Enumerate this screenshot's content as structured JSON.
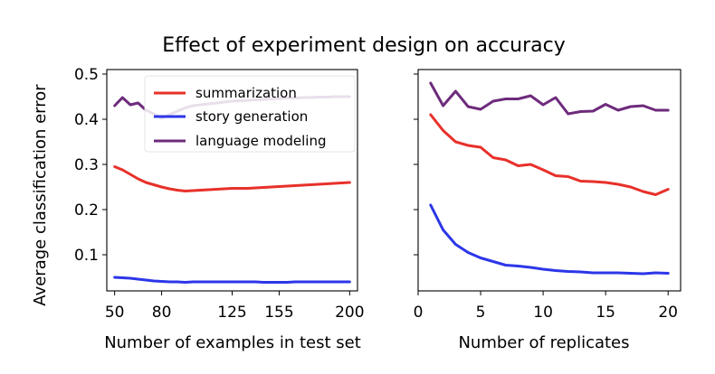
{
  "figure_title": "Effect of experiment design on accuracy",
  "colors": {
    "summarization": "#e8302a",
    "story_generation": "#2c36e8",
    "language_modeling": "#6e2b7c"
  },
  "chart_data": [
    {
      "type": "line",
      "title": "",
      "xlabel": "Number of examples in test set",
      "ylabel": "Average classification error",
      "xlim": [
        45,
        205
      ],
      "ylim": [
        0.02,
        0.51
      ],
      "xticks": [
        50,
        80,
        125,
        155,
        200
      ],
      "yticks": [
        0.1,
        0.2,
        0.3,
        0.4,
        0.5
      ],
      "ytick_labels": [
        "0.1",
        "0.2",
        "0.3",
        "0.4",
        "0.5"
      ],
      "legend": {
        "placement": "top-center",
        "entries": [
          "summarization",
          "story generation",
          "language modeling"
        ]
      },
      "x": [
        50,
        55,
        60,
        65,
        70,
        75,
        80,
        85,
        90,
        95,
        100,
        105,
        110,
        115,
        120,
        125,
        130,
        135,
        140,
        145,
        150,
        155,
        160,
        165,
        170,
        175,
        180,
        185,
        190,
        195,
        200
      ],
      "series": [
        {
          "name": "summarization",
          "color_key": "summarization",
          "values": [
            0.295,
            0.288,
            0.278,
            0.268,
            0.26,
            0.255,
            0.25,
            0.246,
            0.243,
            0.241,
            0.242,
            0.243,
            0.244,
            0.245,
            0.246,
            0.247,
            0.247,
            0.247,
            0.248,
            0.249,
            0.25,
            0.251,
            0.252,
            0.253,
            0.254,
            0.255,
            0.256,
            0.257,
            0.258,
            0.259,
            0.26
          ]
        },
        {
          "name": "story generation",
          "color_key": "story_generation",
          "values": [
            0.05,
            0.049,
            0.048,
            0.046,
            0.044,
            0.042,
            0.041,
            0.04,
            0.04,
            0.039,
            0.04,
            0.04,
            0.04,
            0.04,
            0.04,
            0.04,
            0.04,
            0.04,
            0.04,
            0.039,
            0.039,
            0.039,
            0.039,
            0.04,
            0.04,
            0.04,
            0.04,
            0.04,
            0.04,
            0.04,
            0.04
          ]
        },
        {
          "name": "language modeling",
          "color_key": "language_modeling",
          "values": [
            0.43,
            0.448,
            0.432,
            0.436,
            0.42,
            0.412,
            0.402,
            0.41,
            0.418,
            0.425,
            0.43,
            0.432,
            0.434,
            0.436,
            0.438,
            0.44,
            0.441,
            0.442,
            0.443,
            0.444,
            0.445,
            0.446,
            0.447,
            0.447,
            0.448,
            0.448,
            0.449,
            0.449,
            0.45,
            0.45,
            0.45
          ]
        }
      ]
    },
    {
      "type": "line",
      "title": "",
      "xlabel": "Number of replicates",
      "ylabel": "",
      "xlim": [
        0,
        21
      ],
      "ylim": [
        0.02,
        0.51
      ],
      "xticks": [
        0,
        5,
        10,
        15,
        20
      ],
      "yticks": [
        0.1,
        0.2,
        0.3,
        0.4,
        0.5
      ],
      "ytick_labels": [],
      "legend": null,
      "x": [
        1,
        2,
        3,
        4,
        5,
        6,
        7,
        8,
        9,
        10,
        11,
        12,
        13,
        14,
        15,
        16,
        17,
        18,
        19,
        20
      ],
      "series": [
        {
          "name": "summarization",
          "color_key": "summarization",
          "values": [
            0.41,
            0.375,
            0.35,
            0.342,
            0.338,
            0.315,
            0.31,
            0.297,
            0.3,
            0.288,
            0.275,
            0.273,
            0.263,
            0.262,
            0.26,
            0.256,
            0.25,
            0.24,
            0.233,
            0.245
          ]
        },
        {
          "name": "story generation",
          "color_key": "story_generation",
          "values": [
            0.21,
            0.155,
            0.123,
            0.105,
            0.093,
            0.085,
            0.077,
            0.075,
            0.072,
            0.068,
            0.065,
            0.063,
            0.062,
            0.06,
            0.06,
            0.06,
            0.059,
            0.058,
            0.06,
            0.059
          ]
        },
        {
          "name": "language modeling",
          "color_key": "language_modeling",
          "values": [
            0.48,
            0.43,
            0.462,
            0.428,
            0.422,
            0.44,
            0.445,
            0.445,
            0.452,
            0.432,
            0.448,
            0.412,
            0.417,
            0.418,
            0.433,
            0.42,
            0.428,
            0.43,
            0.42,
            0.42
          ]
        }
      ]
    }
  ]
}
